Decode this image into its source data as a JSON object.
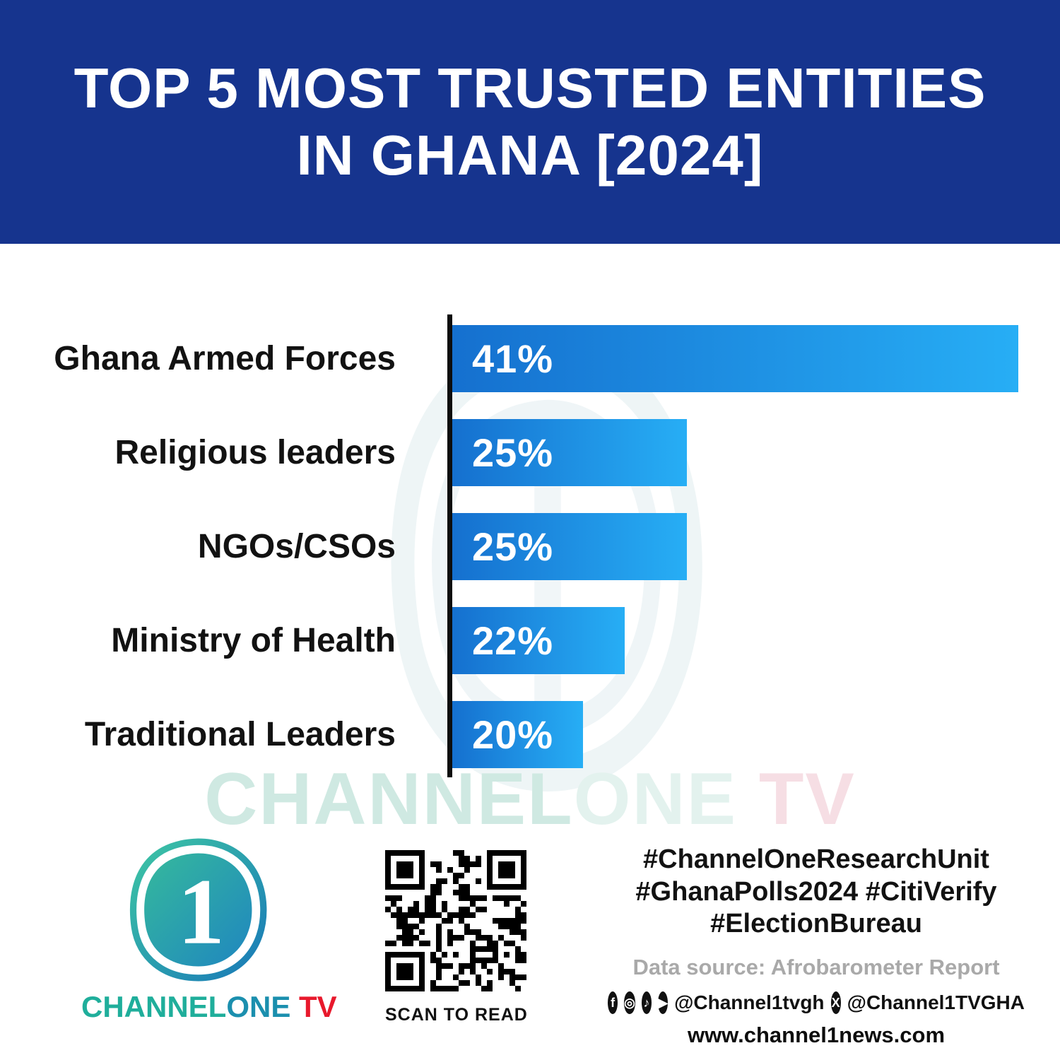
{
  "header": {
    "title_line1": "TOP 5 MOST TRUSTED ENTITIES",
    "title_line2": "IN GHANA [2024]"
  },
  "chart_data": {
    "type": "bar",
    "orientation": "horizontal",
    "title": "Top 5 Most Trusted Entities in Ghana [2024]",
    "categories": [
      "Ghana Armed Forces",
      "Religious leaders",
      "NGOs/CSOs",
      "Ministry of Health",
      "Traditional Leaders"
    ],
    "values": [
      41,
      25,
      25,
      22,
      20
    ],
    "value_labels": [
      "41%",
      "25%",
      "25%",
      "22%",
      "20%"
    ],
    "unit": "%",
    "bar_gradient_start": "#1570cf",
    "bar_gradient_end": "#27aef5",
    "axis_color": "#0d0d0d",
    "legend": false,
    "grid": false
  },
  "watermark": {
    "channel": "CHANNEL",
    "one": "ONE",
    "tv": " TV"
  },
  "footer": {
    "brand": {
      "channel": "CHANNEL",
      "one": "ONE",
      "tv": " TV"
    },
    "qr_caption": "SCAN TO READ",
    "hashtags": [
      "#ChannelOneResearchUnit",
      "#GhanaPolls2024 #CitiVerify",
      "#ElectionBureau"
    ],
    "data_source": "Data source: Afrobarometer Report",
    "social": {
      "handle_main": "@Channel1tvgh",
      "handle_x": "@Channel1TVGHA",
      "glyphs": {
        "facebook": "f",
        "instagram": "◎",
        "tiktok": "♪",
        "youtube": "▶",
        "x": "X"
      }
    },
    "website": "www.channel1news.com"
  },
  "colors": {
    "header_bg": "#16348e",
    "teal": "#1fae9b",
    "red": "#e8192c"
  }
}
